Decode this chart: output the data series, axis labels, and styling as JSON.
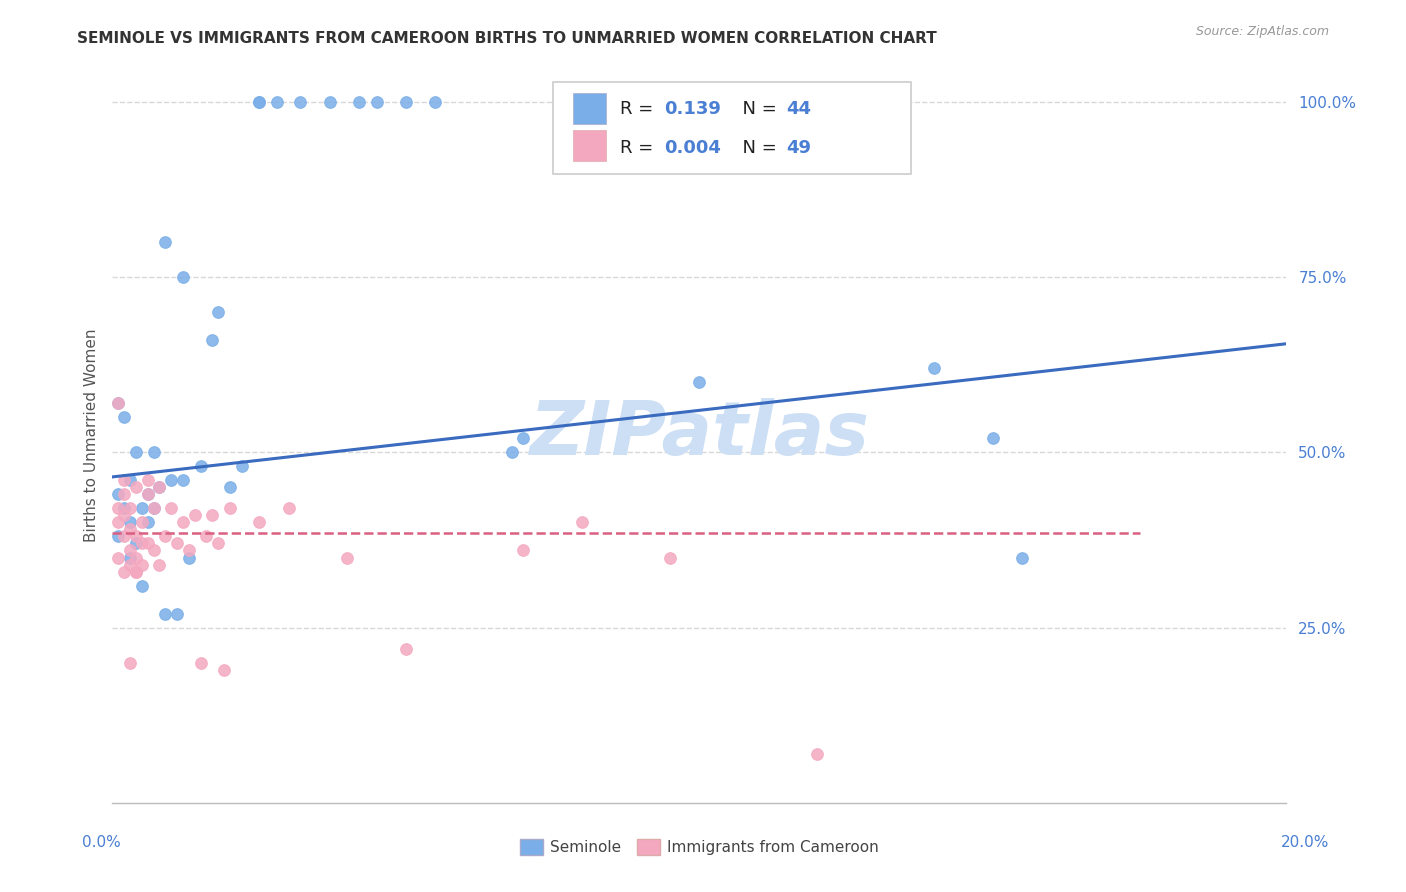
{
  "title": "SEMINOLE VS IMMIGRANTS FROM CAMEROON BIRTHS TO UNMARRIED WOMEN CORRELATION CHART",
  "source": "Source: ZipAtlas.com",
  "ylabel": "Births to Unmarried Women",
  "xmin": 0.0,
  "xmax": 0.2,
  "ymin": 0.0,
  "ymax": 1.05,
  "seminole_color": "#7aaee8",
  "cameroon_color": "#f4a8c0",
  "trend_seminole_color": "#3a6bbf",
  "trend_cameroon_color": "#d96080",
  "watermark_color": "#cddff5",
  "grid_color": "#d8d8d8",
  "right_axis_color": "#4a7fd4",
  "axis_label_color": "#4a7fd4",
  "seminole_x": [
    0.001,
    0.001,
    0.001,
    0.002,
    0.002,
    0.003,
    0.003,
    0.003,
    0.004,
    0.004,
    0.005,
    0.005,
    0.006,
    0.006,
    0.007,
    0.007,
    0.008,
    0.009,
    0.01,
    0.011,
    0.012,
    0.013,
    0.015,
    0.017,
    0.018,
    0.02,
    0.022,
    0.025,
    0.025,
    0.028,
    0.032,
    0.037,
    0.042,
    0.045,
    0.05,
    0.055,
    0.068,
    0.07,
    0.1,
    0.14,
    0.15,
    0.155,
    0.009,
    0.012
  ],
  "seminole_y": [
    0.57,
    0.44,
    0.38,
    0.55,
    0.42,
    0.46,
    0.4,
    0.35,
    0.5,
    0.37,
    0.42,
    0.31,
    0.44,
    0.4,
    0.5,
    0.42,
    0.45,
    0.27,
    0.46,
    0.27,
    0.46,
    0.35,
    0.48,
    0.66,
    0.7,
    0.45,
    0.48,
    1.0,
    1.0,
    1.0,
    1.0,
    1.0,
    1.0,
    1.0,
    1.0,
    1.0,
    0.5,
    0.52,
    0.6,
    0.62,
    0.52,
    0.35,
    0.8,
    0.75
  ],
  "cameroon_x": [
    0.001,
    0.001,
    0.001,
    0.001,
    0.002,
    0.002,
    0.002,
    0.002,
    0.003,
    0.003,
    0.003,
    0.003,
    0.004,
    0.004,
    0.004,
    0.004,
    0.005,
    0.005,
    0.005,
    0.006,
    0.006,
    0.007,
    0.007,
    0.008,
    0.008,
    0.009,
    0.01,
    0.011,
    0.012,
    0.013,
    0.014,
    0.015,
    0.016,
    0.017,
    0.018,
    0.019,
    0.02,
    0.025,
    0.03,
    0.04,
    0.05,
    0.07,
    0.08,
    0.095,
    0.12,
    0.002,
    0.003,
    0.004,
    0.006
  ],
  "cameroon_y": [
    0.42,
    0.4,
    0.35,
    0.57,
    0.44,
    0.41,
    0.38,
    0.33,
    0.42,
    0.39,
    0.36,
    0.34,
    0.45,
    0.38,
    0.35,
    0.33,
    0.4,
    0.37,
    0.34,
    0.44,
    0.37,
    0.42,
    0.36,
    0.45,
    0.34,
    0.38,
    0.42,
    0.37,
    0.4,
    0.36,
    0.41,
    0.2,
    0.38,
    0.41,
    0.37,
    0.19,
    0.42,
    0.4,
    0.42,
    0.35,
    0.22,
    0.36,
    0.4,
    0.35,
    0.07,
    0.46,
    0.2,
    0.33,
    0.46
  ],
  "trend_blue_x0": 0.0,
  "trend_blue_x1": 0.2,
  "trend_blue_y0": 0.465,
  "trend_blue_y1": 0.655,
  "trend_pink_y": 0.385,
  "trend_pink_x0": 0.0,
  "trend_pink_x1": 0.175
}
